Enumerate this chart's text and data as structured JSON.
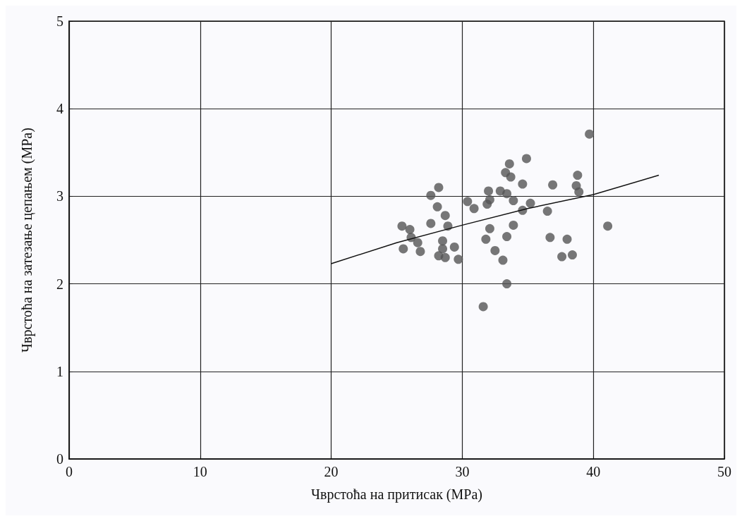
{
  "chart_data": {
    "type": "scatter",
    "xlabel": "Чврстоћа на притисак (MPa)",
    "ylabel": "Чврстоћа на затезање цепањем (MPa)",
    "xlim": [
      0,
      50
    ],
    "ylim": [
      0,
      5
    ],
    "xticks": [
      0,
      10,
      20,
      30,
      40,
      50
    ],
    "yticks": [
      0,
      1,
      2,
      3,
      4,
      5
    ],
    "grid": true,
    "marker": "circle",
    "series": [
      {
        "color": "#555555",
        "x": [
          39.7,
          34.9,
          33.6,
          33.3,
          33.7,
          34.6,
          36.9,
          38.8,
          38.7,
          38.9,
          28.2,
          27.6,
          32.0,
          32.9,
          33.4,
          33.9,
          32.1,
          31.9,
          30.4,
          30.9,
          34.6,
          35.2,
          36.5,
          28.1,
          28.7,
          27.6,
          28.9,
          25.4,
          26.0,
          26.1,
          26.6,
          25.5,
          26.8,
          28.5,
          28.5,
          28.2,
          28.7,
          29.4,
          29.7,
          32.1,
          31.8,
          33.4,
          33.9,
          32.5,
          33.1,
          33.4,
          31.6,
          36.7,
          38.0,
          37.6,
          38.4,
          41.1
        ],
        "values": [
          3.71,
          3.43,
          3.37,
          3.27,
          3.22,
          3.14,
          3.13,
          3.24,
          3.12,
          3.05,
          3.1,
          3.01,
          3.06,
          3.06,
          3.03,
          2.95,
          2.96,
          2.91,
          2.94,
          2.86,
          2.84,
          2.92,
          2.83,
          2.88,
          2.78,
          2.69,
          2.66,
          2.66,
          2.62,
          2.53,
          2.47,
          2.4,
          2.37,
          2.49,
          2.4,
          2.32,
          2.3,
          2.42,
          2.28,
          2.63,
          2.51,
          2.54,
          2.67,
          2.38,
          2.27,
          2.0,
          1.74,
          2.53,
          2.51,
          2.31,
          2.33,
          2.66
        ]
      },
      {
        "type": "line",
        "color": "#111111",
        "marker": "none",
        "x": [
          20,
          25,
          30,
          35,
          40,
          45
        ],
        "values": [
          2.23,
          2.47,
          2.67,
          2.86,
          3.02,
          3.24
        ]
      }
    ]
  }
}
